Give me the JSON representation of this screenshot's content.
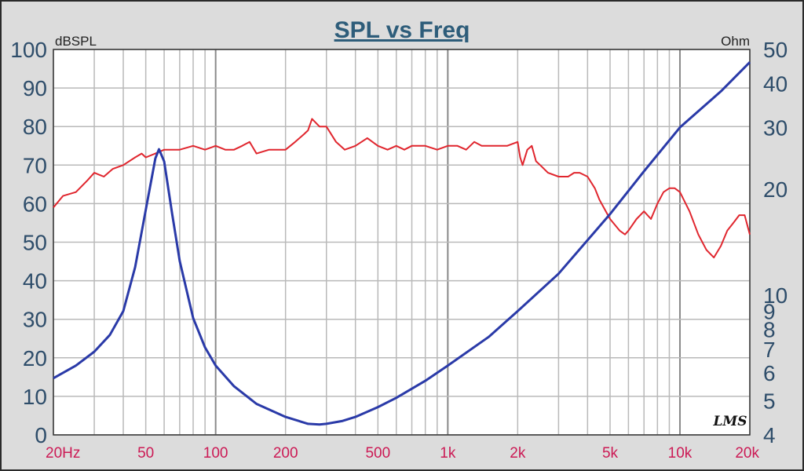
{
  "chart_data": {
    "type": "line",
    "title": "SPL vs Freq",
    "left_axis": {
      "label": "dBSPL",
      "range": [
        0,
        100
      ],
      "ticks": [
        "0",
        "10",
        "20",
        "30",
        "40",
        "50",
        "60",
        "70",
        "80",
        "90",
        "100"
      ]
    },
    "right_axis": {
      "label": "Ohm",
      "scale": "log",
      "range": [
        4,
        50
      ],
      "ticks": [
        "4",
        "5",
        "6",
        "7",
        "8",
        "9",
        "10",
        "20",
        "30",
        "40",
        "50"
      ]
    },
    "x_axis": {
      "scale": "log",
      "unit": "Hz",
      "range": [
        20,
        20000
      ],
      "ticks": [
        "20Hz",
        "50",
        "100",
        "200",
        "500",
        "1k",
        "2k",
        "5k",
        "10k",
        "20k"
      ]
    },
    "grid": true,
    "watermark": "LMS",
    "colors": {
      "spl": "#e0262e",
      "impedance": "#2a3aa8",
      "title": "#2e5d7a",
      "left_ticks": "#2e4d6a",
      "x_ticks": "#cc1a55",
      "background": "#dcdcdc"
    },
    "series": [
      {
        "axis": "left",
        "x": [
          20,
          22,
          25,
          28,
          30,
          33,
          36,
          40,
          45,
          48,
          50,
          55,
          60,
          65,
          70,
          80,
          90,
          100,
          110,
          120,
          130,
          140,
          150,
          170,
          180,
          200,
          220,
          240,
          250,
          260,
          280,
          300,
          330,
          360,
          400,
          450,
          500,
          550,
          600,
          650,
          700,
          800,
          900,
          1000,
          1100,
          1200,
          1300,
          1400,
          1500,
          1700,
          1800,
          2000,
          2050,
          2100,
          2200,
          2300,
          2400,
          2500,
          2700,
          3000,
          3300,
          3500,
          3700,
          4000,
          4300,
          4500,
          5000,
          5500,
          5800,
          6000,
          6500,
          7000,
          7500,
          8000,
          8500,
          9000,
          9500,
          10000,
          11000,
          12000,
          13000,
          14000,
          15000,
          16000,
          17000,
          18000,
          19000,
          20000
        ],
        "values": [
          59,
          62,
          63,
          66,
          68,
          67,
          69,
          70,
          72,
          73,
          72,
          73,
          74,
          74,
          74,
          75,
          74,
          75,
          74,
          74,
          75,
          76,
          73,
          74,
          74,
          74,
          76,
          78,
          79,
          82,
          80,
          80,
          76,
          74,
          75,
          77,
          75,
          74,
          75,
          74,
          75,
          75,
          74,
          75,
          75,
          74,
          76,
          75,
          75,
          75,
          75,
          76,
          72,
          70,
          74,
          75,
          71,
          70,
          68,
          67,
          67,
          68,
          68,
          67,
          64,
          61,
          56,
          53,
          52,
          53,
          56,
          58,
          56,
          60,
          63,
          64,
          64,
          63,
          58,
          52,
          48,
          46,
          49,
          53,
          55,
          57,
          57,
          52
        ]
      },
      {
        "axis": "right",
        "x": [
          20,
          25,
          30,
          35,
          40,
          45,
          50,
          55,
          57,
          60,
          65,
          70,
          80,
          90,
          100,
          120,
          150,
          200,
          250,
          280,
          300,
          350,
          400,
          500,
          600,
          800,
          1000,
          1500,
          2000,
          3000,
          5000,
          7000,
          10000,
          15000,
          20000
        ],
        "values": [
          5.8,
          6.3,
          6.9,
          7.7,
          9.0,
          12.0,
          17.5,
          24.5,
          26.0,
          24.0,
          17.0,
          12.5,
          8.6,
          7.1,
          6.3,
          5.5,
          4.9,
          4.5,
          4.3,
          4.28,
          4.3,
          4.38,
          4.5,
          4.8,
          5.1,
          5.7,
          6.3,
          7.6,
          9.0,
          11.5,
          17.0,
          22.5,
          30.0,
          38.0,
          46.0
        ]
      }
    ]
  }
}
